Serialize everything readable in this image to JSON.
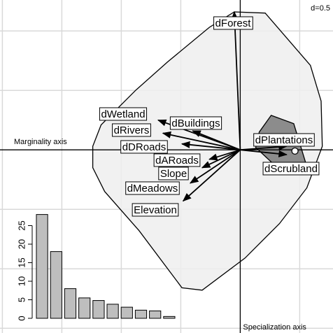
{
  "chart_data": [
    {
      "type": "enfa-biplot",
      "xlim": [
        -2.02,
        0.78
      ],
      "ylim": [
        1.26,
        -1.54
      ],
      "grid_step": {
        "value": 0.5,
        "label": "d=0.5"
      },
      "x_axis_label": "Marginality axis",
      "y_axis_label": "Specialization axis",
      "available_polygon": {
        "color": "#efefef",
        "x": [
          -0.05,
          0.21,
          0.59,
          0.68,
          0.69,
          0.56,
          0.33,
          0.04,
          -0.32,
          -0.49,
          -0.85,
          -1.14,
          -1.24,
          -1.24,
          -1.17,
          -0.88,
          -0.61,
          -0.26
        ],
        "y": [
          1.16,
          1.15,
          0.71,
          0.41,
          0.03,
          -0.32,
          -0.62,
          -0.91,
          -1.18,
          -1.16,
          -0.68,
          -0.35,
          -0.15,
          0.03,
          0.21,
          0.5,
          0.74,
          1.03
        ]
      },
      "used_polygon": {
        "color": "#8c8c8c",
        "x": [
          0.26,
          0.45,
          0.56,
          0.28,
          0.13,
          0.16
        ],
        "y": [
          0.29,
          0.22,
          -0.14,
          -0.12,
          0.02,
          0.15
        ]
      },
      "centroid": {
        "x": 0.46,
        "y": -0.01
      },
      "arrows": [
        {
          "name": "dForest",
          "x": -0.05,
          "y": 1.16
        },
        {
          "name": "dWetland",
          "x": -0.69,
          "y": 0.25
        },
        {
          "name": "dBuildings",
          "x": -0.4,
          "y": 0.16
        },
        {
          "name": "dRivers",
          "x": -0.65,
          "y": 0.14
        },
        {
          "name": "dDRoads",
          "x": -0.49,
          "y": 0.05
        },
        {
          "name": "dARoads",
          "x": -0.26,
          "y": -0.08
        },
        {
          "name": "Slope",
          "x": -0.32,
          "y": -0.15
        },
        {
          "name": "dMeadows",
          "x": -0.42,
          "y": -0.28
        },
        {
          "name": "Elevation",
          "x": -0.48,
          "y": -0.43
        },
        {
          "name": "dPlantations",
          "x": 0.39,
          "y": 0.03
        },
        {
          "name": "dScrubland",
          "x": 0.39,
          "y": -0.04
        }
      ]
    },
    {
      "type": "bar",
      "values": [
        28,
        18,
        8,
        5.5,
        4.8,
        3.8,
        3,
        2.2,
        2,
        0.5
      ],
      "color": "#bebebe",
      "ylim": [
        0,
        30
      ],
      "yticks": [
        0,
        5,
        10,
        15,
        20,
        25
      ]
    }
  ]
}
